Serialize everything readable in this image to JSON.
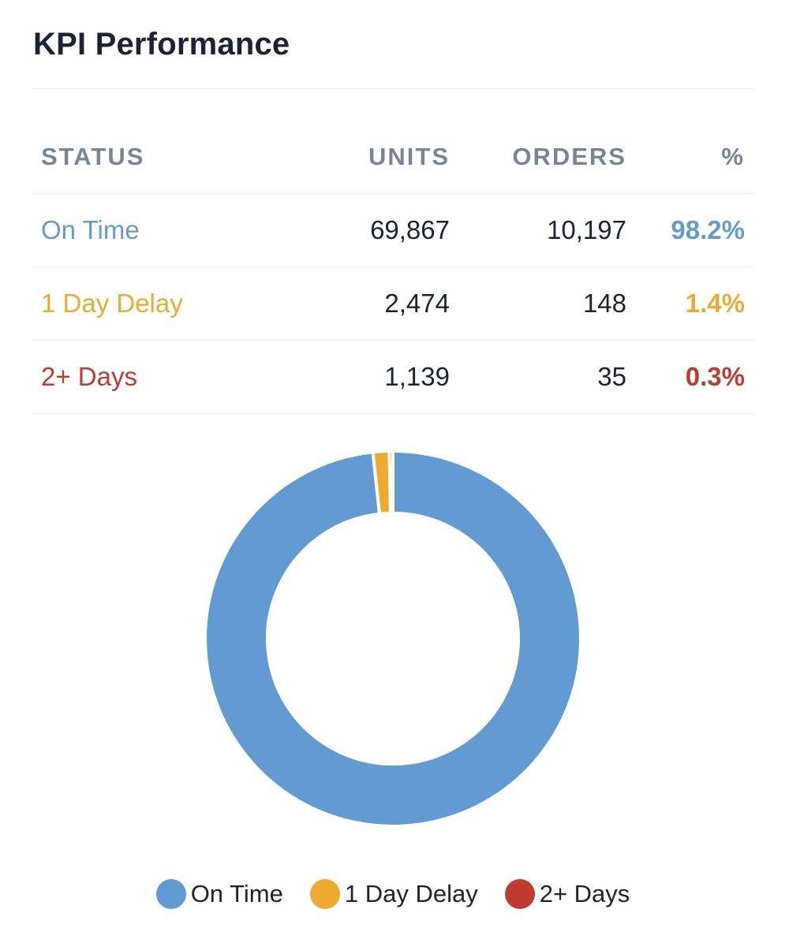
{
  "title": "KPI Performance",
  "colors": {
    "on_time": "#619bd2",
    "one_day": "#ecaa2f",
    "two_plus": "#bf3b2e"
  },
  "table": {
    "headers": [
      "STATUS",
      "UNITS",
      "ORDERS",
      "%"
    ],
    "rows": [
      {
        "status": "On Time",
        "units": "69,867",
        "orders": "10,197",
        "pct": "98.2%"
      },
      {
        "status": "1 Day Delay",
        "units": "2,474",
        "orders": "148",
        "pct": "1.4%"
      },
      {
        "status": "2+ Days",
        "units": "1,139",
        "orders": "35",
        "pct": "0.3%"
      }
    ]
  },
  "chart_data": {
    "type": "pie",
    "donut": true,
    "title": "",
    "categories": [
      "On Time",
      "1 Day Delay",
      "2+ Days"
    ],
    "values": [
      98.2,
      1.4,
      0.3
    ],
    "colors": [
      "#619bd2",
      "#ecaa2f",
      "#bf3b2e"
    ],
    "legend_position": "bottom"
  }
}
